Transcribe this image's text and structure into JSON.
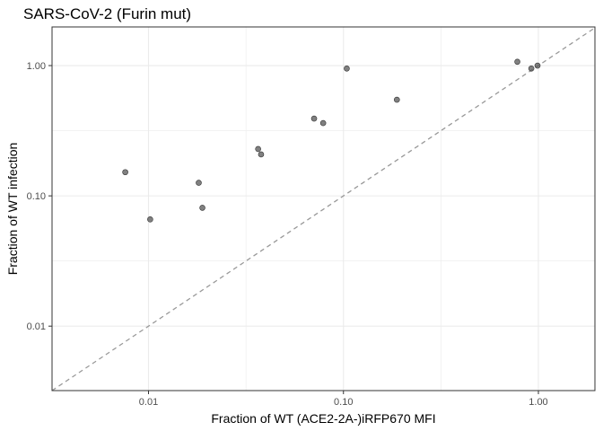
{
  "chart_data": {
    "type": "scatter",
    "title": "SARS-CoV-2 (Furin mut)",
    "xlabel": "Fraction of WT (ACE2-2A-)iRFP670 MFI",
    "ylabel": "Fraction of WT infection",
    "x_scale": "log",
    "y_scale": "log",
    "xlim": [
      0.0032,
      1.95
    ],
    "ylim": [
      0.0032,
      1.98
    ],
    "x_ticks": [
      0.01,
      0.1,
      1.0
    ],
    "x_tick_labels": [
      "0.01",
      "0.10",
      "1.00"
    ],
    "y_ticks": [
      0.01,
      0.1,
      1.0
    ],
    "y_tick_labels": [
      "0.01",
      "0.10",
      "1.00"
    ],
    "grid": true,
    "reference_line": "y = x (dashed)",
    "point_color": "#555555",
    "points": [
      {
        "x": 0.0076,
        "y": 0.152
      },
      {
        "x": 0.0102,
        "y": 0.066
      },
      {
        "x": 0.0181,
        "y": 0.126
      },
      {
        "x": 0.0189,
        "y": 0.081
      },
      {
        "x": 0.0365,
        "y": 0.229
      },
      {
        "x": 0.0378,
        "y": 0.208
      },
      {
        "x": 0.0707,
        "y": 0.392
      },
      {
        "x": 0.0787,
        "y": 0.362
      },
      {
        "x": 0.104,
        "y": 0.95
      },
      {
        "x": 0.188,
        "y": 0.547
      },
      {
        "x": 0.78,
        "y": 1.07
      },
      {
        "x": 0.92,
        "y": 0.95
      },
      {
        "x": 0.99,
        "y": 1.0
      }
    ]
  }
}
